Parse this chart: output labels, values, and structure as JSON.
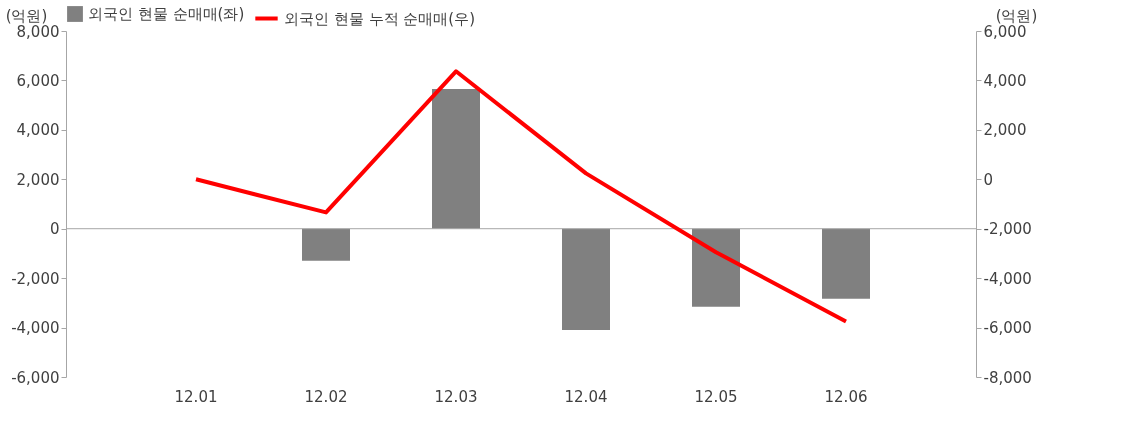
{
  "chart_data": {
    "type": "bar",
    "categories": [
      "12.01",
      "12.02",
      "12.03",
      "12.04",
      "12.05",
      "12.06"
    ],
    "ylabel": "(억원)",
    "y2label": "(억원)",
    "series": [
      {
        "name": "외국인 현물 순매매(좌)",
        "type": "bar",
        "color": "#808080",
        "values": [
          0,
          -1300,
          5650,
          -4100,
          -3160,
          -2830
        ]
      },
      {
        "name": "외국인 현물 누적 순매매(우)",
        "type": "line",
        "axis": "y2",
        "color": "#ff0000",
        "values": [
          0,
          -1340,
          4370,
          240,
          -2950,
          -5750
        ]
      }
    ],
    "ylim": [
      -6000,
      8000
    ],
    "yticks": [
      {
        "value": -6000,
        "label": "-6,000"
      },
      {
        "value": -4000,
        "label": "-4,000"
      },
      {
        "value": -2000,
        "label": "-2,000"
      },
      0,
      {
        "value": 2000,
        "label": "2,000"
      },
      {
        "value": 4000,
        "label": "4,000"
      },
      {
        "value": 6000,
        "label": "6,000"
      },
      {
        "value": 8000,
        "label": "8,000"
      }
    ],
    "y2lim": [
      -8000,
      6000
    ],
    "y2ticks": [
      {
        "value": -8000,
        "label": "-8,000"
      },
      {
        "value": -6000,
        "label": "-6,000"
      },
      {
        "value": -4000,
        "label": "-4,000"
      },
      {
        "value": -2000,
        "label": "-2,000"
      },
      0,
      {
        "value": 2000,
        "label": "2,000"
      },
      {
        "value": 4000,
        "label": "4,000"
      },
      {
        "value": 6000,
        "label": "6,000"
      }
    ],
    "ref_lines": [
      {
        "axis": "y",
        "value": 0,
        "color": "#a6a6a6"
      }
    ],
    "grid": false,
    "legend": "top",
    "marker": "none",
    "line_style": "solid"
  }
}
